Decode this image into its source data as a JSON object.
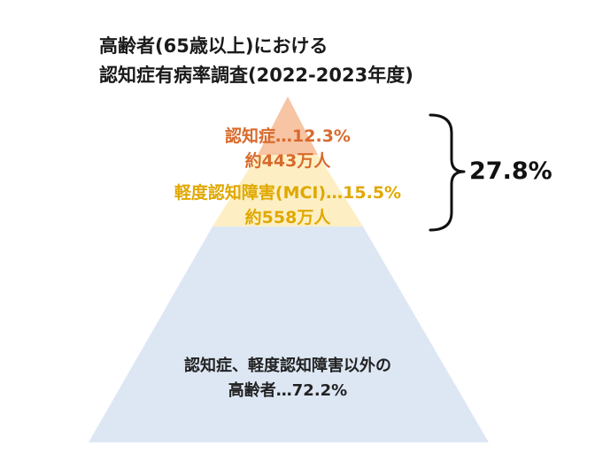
{
  "title": {
    "line1": "高齢者(65歳以上)における",
    "line2": "認知症有病率調査(2022-2023年度)"
  },
  "tiers": {
    "dementia": {
      "line1": "認知症…12.3%",
      "line2": "約443万人",
      "percent": 12.3,
      "count_10k": 443,
      "color": "#d86a2c"
    },
    "mci": {
      "line1": "軽度認知障害(MCI)…15.5%",
      "line2": "約558万人",
      "percent": 15.5,
      "count_10k": 558,
      "color": "#e0a800"
    },
    "other": {
      "line1": "認知症、軽度認知障害以外の",
      "line2": "高齢者…72.2%",
      "percent": 72.2
    }
  },
  "bracket_total": "27.8%",
  "colors": {
    "top_fill": "#f7c4a4",
    "mid_fill": "#fdefc3",
    "base_fill": "#dde7f4"
  }
}
